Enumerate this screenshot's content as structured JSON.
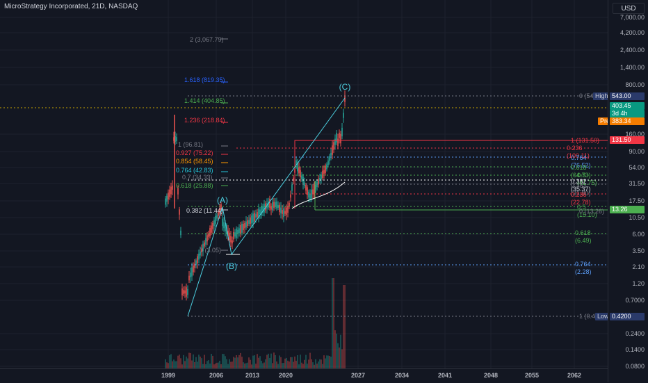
{
  "header": {
    "title": "MicroStrategy Incorporated, 21D, NASDAQ",
    "currency_button": "USD"
  },
  "price_axis": {
    "labels": [
      "7,000.00",
      "4,200.00",
      "2,400.00",
      "1,400.00",
      "800.00",
      "160.00",
      "90.00",
      "54.00",
      "31.50",
      "17.50",
      "10.50",
      "6.00",
      "3.50",
      "2.10",
      "1.20",
      "0.7000",
      "0.2400",
      "0.1400",
      "0.0800"
    ]
  },
  "price_tags": {
    "high_label": "High",
    "high_value": "543.00",
    "last_value": "403.45",
    "countdown": "3d 4h",
    "pre_label": "Pre",
    "pre_value": "383.34",
    "red_value": "131.50",
    "green_value": "13.26",
    "low_label": "Low",
    "low_value": "0.4200"
  },
  "time_axis": {
    "labels": [
      "1999",
      "2006",
      "2013",
      "2020",
      "2027",
      "2034",
      "2041",
      "2048",
      "2055",
      "2062"
    ]
  },
  "fib_left": [
    "2 (3,067.79)",
    "1.618 (819.35)",
    "1.414 (404.85)",
    "1.236 (218.84)",
    "1 (96.81)",
    "0.927 (75.22)",
    "0.854 (58.45)",
    "0.764 (42.83)",
    "0.7 (34.33)",
    "0.618 (25.88)",
    "0.382 (11.44)",
    "0 (3.05)"
  ],
  "fib_right": [
    "0 (54",
    "1 (131.50)",
    "0.236 (100.11)",
    "0.764 (76.52)",
    "0.618 (64.73)",
    "0.5 (41.75)",
    "0.382 (35.37)",
    "0.382 (31.80)",
    "0.236 (22.78)",
    "0.5 (15.10)",
    "0 (13.26)",
    "0.618 (6.49)",
    "0.764 (2.28)",
    "1 (0.4"
  ],
  "wave_labels": {
    "a": "(A)",
    "b": "(B)",
    "c": "(C)"
  },
  "colors": {
    "background": "#131722",
    "up": "#26a69a",
    "down": "#ef5350",
    "wave": "#4dd0e1",
    "high_tag": "#2a3a6a",
    "last_tag": "#089981",
    "pre_tag": "#f57c00",
    "red_tag": "#f23645",
    "green_tag": "#4caf50"
  }
}
